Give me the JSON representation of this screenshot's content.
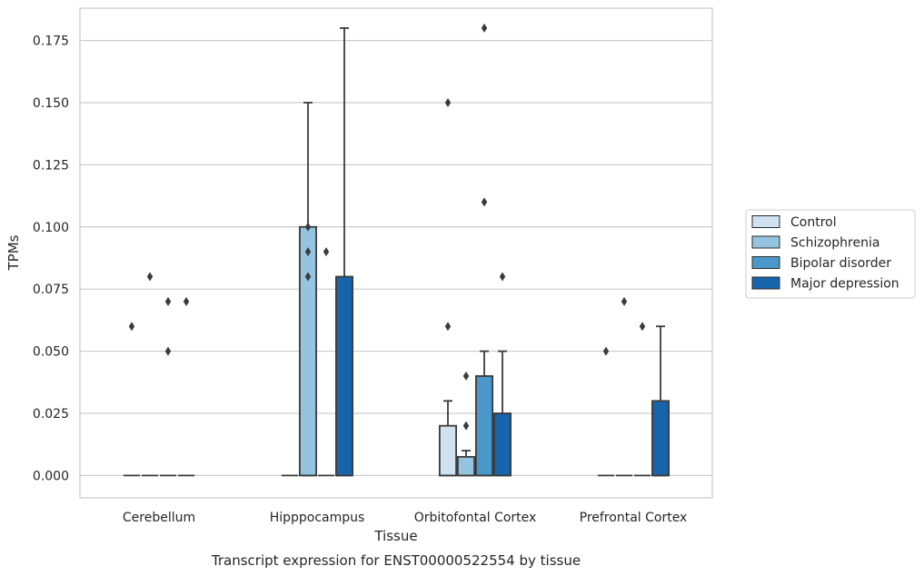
{
  "chart_data": {
    "type": "bar",
    "title": "",
    "caption": "Transcript expression for ENST00000522554 by tissue",
    "xlabel": "Tissue",
    "ylabel": "TPMs",
    "ylim": [
      -0.009,
      0.188
    ],
    "yticks": [
      "0.000",
      "0.025",
      "0.050",
      "0.075",
      "0.100",
      "0.125",
      "0.150",
      "0.175"
    ],
    "ytick_values": [
      0,
      0.025,
      0.05,
      0.075,
      0.1,
      0.125,
      0.15,
      0.175
    ],
    "grid": true,
    "legend_position": "right",
    "categories": [
      "Cerebellum",
      "Hipppocampus",
      "Orbitofontal Cortex",
      "Prefrontal Cortex"
    ],
    "series": [
      {
        "name": "Control",
        "color": "#d0e1f2",
        "boxes": [
          {
            "q1": 0,
            "q3": 0,
            "whisker_low": 0,
            "whisker_high": 0,
            "outliers": [
              0.06
            ]
          },
          {
            "q1": 0,
            "q3": 0,
            "whisker_low": 0,
            "whisker_high": 0,
            "outliers": []
          },
          {
            "q1": 0,
            "q3": 0.02,
            "whisker_low": 0,
            "whisker_high": 0.03,
            "outliers": [
              0.06,
              0.15
            ]
          },
          {
            "q1": 0,
            "q3": 0,
            "whisker_low": 0,
            "whisker_high": 0,
            "outliers": [
              0.05
            ]
          }
        ]
      },
      {
        "name": "Schizophrenia",
        "color": "#94c4df",
        "boxes": [
          {
            "q1": 0,
            "q3": 0,
            "whisker_low": 0,
            "whisker_high": 0,
            "outliers": [
              0.08
            ]
          },
          {
            "q1": 0,
            "q3": 0.1,
            "whisker_low": 0,
            "whisker_high": 0.15,
            "outliers": [
              0.08,
              0.09,
              0.1
            ]
          },
          {
            "q1": 0,
            "q3": 0.0075,
            "whisker_low": 0,
            "whisker_high": 0.01,
            "outliers": [
              0.02,
              0.04
            ]
          },
          {
            "q1": 0,
            "q3": 0,
            "whisker_low": 0,
            "whisker_high": 0,
            "outliers": [
              0.07
            ]
          }
        ]
      },
      {
        "name": "Bipolar disorder",
        "color": "#4a98c9",
        "boxes": [
          {
            "q1": 0,
            "q3": 0,
            "whisker_low": 0,
            "whisker_high": 0,
            "outliers": [
              0.05,
              0.07
            ]
          },
          {
            "q1": 0,
            "q3": 0,
            "whisker_low": 0,
            "whisker_high": 0,
            "outliers": [
              0.09
            ]
          },
          {
            "q1": 0,
            "q3": 0.04,
            "whisker_low": 0,
            "whisker_high": 0.05,
            "outliers": [
              0.11,
              0.18
            ]
          },
          {
            "q1": 0,
            "q3": 0,
            "whisker_low": 0,
            "whisker_high": 0,
            "outliers": [
              0.06
            ]
          }
        ]
      },
      {
        "name": "Major depression",
        "color": "#1764ab",
        "boxes": [
          {
            "q1": 0,
            "q3": 0,
            "whisker_low": 0,
            "whisker_high": 0,
            "outliers": [
              0.07
            ]
          },
          {
            "q1": 0,
            "q3": 0.08,
            "whisker_low": 0,
            "whisker_high": 0.18,
            "outliers": []
          },
          {
            "q1": 0,
            "q3": 0.025,
            "whisker_low": 0,
            "whisker_high": 0.05,
            "outliers": [
              0.08
            ]
          },
          {
            "q1": 0,
            "q3": 0.03,
            "whisker_low": 0,
            "whisker_high": 0.06,
            "outliers": []
          }
        ]
      }
    ]
  }
}
